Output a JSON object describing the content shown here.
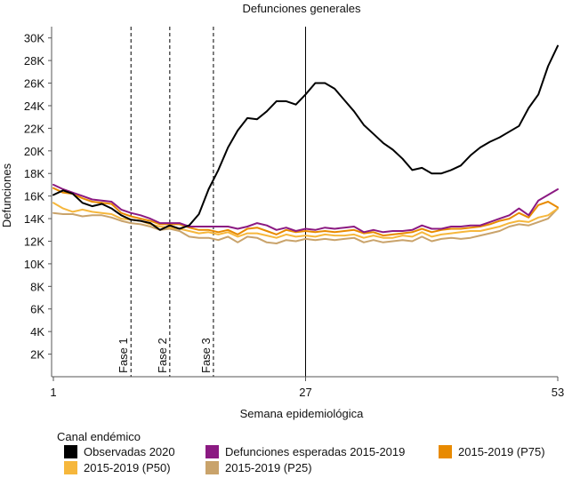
{
  "chart_data": {
    "type": "line",
    "title": "Defunciones generales",
    "xlabel": "Semana epidemiológica",
    "ylabel": "Defunciones",
    "xlim": [
      1,
      53
    ],
    "ylim": [
      0,
      31000
    ],
    "xticks": [
      {
        "value": 1,
        "label": "1"
      },
      {
        "value": 27,
        "label": "27"
      },
      {
        "value": 53,
        "label": "53"
      }
    ],
    "yticks": [
      {
        "value": 2000,
        "label": "2K"
      },
      {
        "value": 4000,
        "label": "4K"
      },
      {
        "value": 6000,
        "label": "6K"
      },
      {
        "value": 8000,
        "label": "8K"
      },
      {
        "value": 10000,
        "label": "10K"
      },
      {
        "value": 12000,
        "label": "12K"
      },
      {
        "value": 14000,
        "label": "14K"
      },
      {
        "value": 16000,
        "label": "16K"
      },
      {
        "value": 18000,
        "label": "18K"
      },
      {
        "value": 20000,
        "label": "20K"
      },
      {
        "value": 22000,
        "label": "22K"
      },
      {
        "value": 24000,
        "label": "24K"
      },
      {
        "value": 26000,
        "label": "26K"
      },
      {
        "value": 28000,
        "label": "28K"
      },
      {
        "value": 30000,
        "label": "30K"
      }
    ],
    "reference_lines": [
      {
        "x": 9,
        "label": "Fase 1",
        "style": "dashed"
      },
      {
        "x": 13,
        "label": "Fase 2",
        "style": "dashed"
      },
      {
        "x": 17.5,
        "label": "Fase 3",
        "style": "dashed"
      },
      {
        "x": 27,
        "label": "",
        "style": "solid"
      }
    ],
    "legend_title": "Canal endémico",
    "legend_position": "bottom",
    "series": [
      {
        "name": "Observadas 2020",
        "color": "#000000",
        "width": 2,
        "values": [
          16100,
          16500,
          16200,
          15400,
          15100,
          15300,
          14900,
          14300,
          13900,
          13800,
          13600,
          13000,
          13400,
          13100,
          13400,
          14400,
          16600,
          18300,
          20300,
          21800,
          22900,
          22800,
          23500,
          24400,
          24400,
          24100,
          25000,
          26000,
          26000,
          25500,
          24500,
          23500,
          22300,
          21500,
          20700,
          20100,
          19300,
          18300,
          18500,
          18000,
          18000,
          18300,
          18700,
          19600,
          20300,
          20800,
          21200,
          21700,
          22200,
          23800,
          25000,
          27500,
          29300
        ]
      },
      {
        "name": "Defunciones esperadas 2015-2019",
        "color": "#8b1a82",
        "width": 2,
        "values": [
          17000,
          16600,
          16300,
          16000,
          15700,
          15600,
          15500,
          14800,
          14500,
          14300,
          14000,
          13600,
          13600,
          13600,
          13300,
          13300,
          13300,
          13300,
          13300,
          13100,
          13300,
          13600,
          13400,
          13000,
          13200,
          12900,
          13100,
          13000,
          13200,
          13100,
          13200,
          13300,
          12800,
          13000,
          12800,
          12900,
          12900,
          13000,
          13400,
          13100,
          13100,
          13300,
          13300,
          13400,
          13400,
          13700,
          14000,
          14300,
          14900,
          14300,
          15600,
          16100,
          16600
        ]
      },
      {
        "name": "2015-2019 (P75)",
        "color": "#e88a00",
        "width": 2,
        "values": [
          16700,
          16300,
          16200,
          15800,
          15500,
          15400,
          15300,
          14500,
          14200,
          14000,
          13800,
          13500,
          13500,
          13500,
          13200,
          13000,
          13000,
          12800,
          13000,
          12600,
          13100,
          13200,
          12900,
          12600,
          13000,
          12800,
          12900,
          12800,
          12900,
          12800,
          12900,
          13000,
          12700,
          12800,
          12500,
          12600,
          12700,
          12800,
          13100,
          12800,
          13000,
          13100,
          13100,
          13200,
          13300,
          13500,
          13800,
          14000,
          14500,
          14100,
          15200,
          15500,
          15000
        ]
      },
      {
        "name": "2015-2019 (P50)",
        "color": "#f6b73c",
        "width": 2,
        "values": [
          15400,
          14900,
          14600,
          14800,
          14600,
          14500,
          14400,
          14000,
          13900,
          13800,
          13500,
          13300,
          13200,
          13100,
          12900,
          12700,
          12800,
          12600,
          12800,
          12400,
          12700,
          12700,
          12500,
          12300,
          12600,
          12400,
          12500,
          12400,
          12600,
          12500,
          12500,
          12600,
          12300,
          12500,
          12300,
          12300,
          12500,
          12400,
          12800,
          12400,
          12600,
          12700,
          12800,
          12900,
          12900,
          13100,
          13300,
          13600,
          13800,
          13700,
          14100,
          14300,
          14900
        ]
      },
      {
        "name": "2015-2019 (P25)",
        "color": "#c9a36b",
        "width": 2,
        "values": [
          14500,
          14400,
          14400,
          14200,
          14300,
          14300,
          14100,
          13800,
          13600,
          13500,
          13300,
          13000,
          13100,
          12900,
          12400,
          12300,
          12300,
          12100,
          12400,
          11900,
          12400,
          12300,
          11900,
          11800,
          12100,
          12000,
          12200,
          12100,
          12200,
          12100,
          12200,
          12300,
          11900,
          12100,
          11900,
          12000,
          12100,
          12000,
          12400,
          12000,
          12200,
          12300,
          12200,
          12300,
          12500,
          12700,
          12900,
          13300,
          13500,
          13400,
          13700,
          14000,
          14900
        ]
      }
    ]
  }
}
